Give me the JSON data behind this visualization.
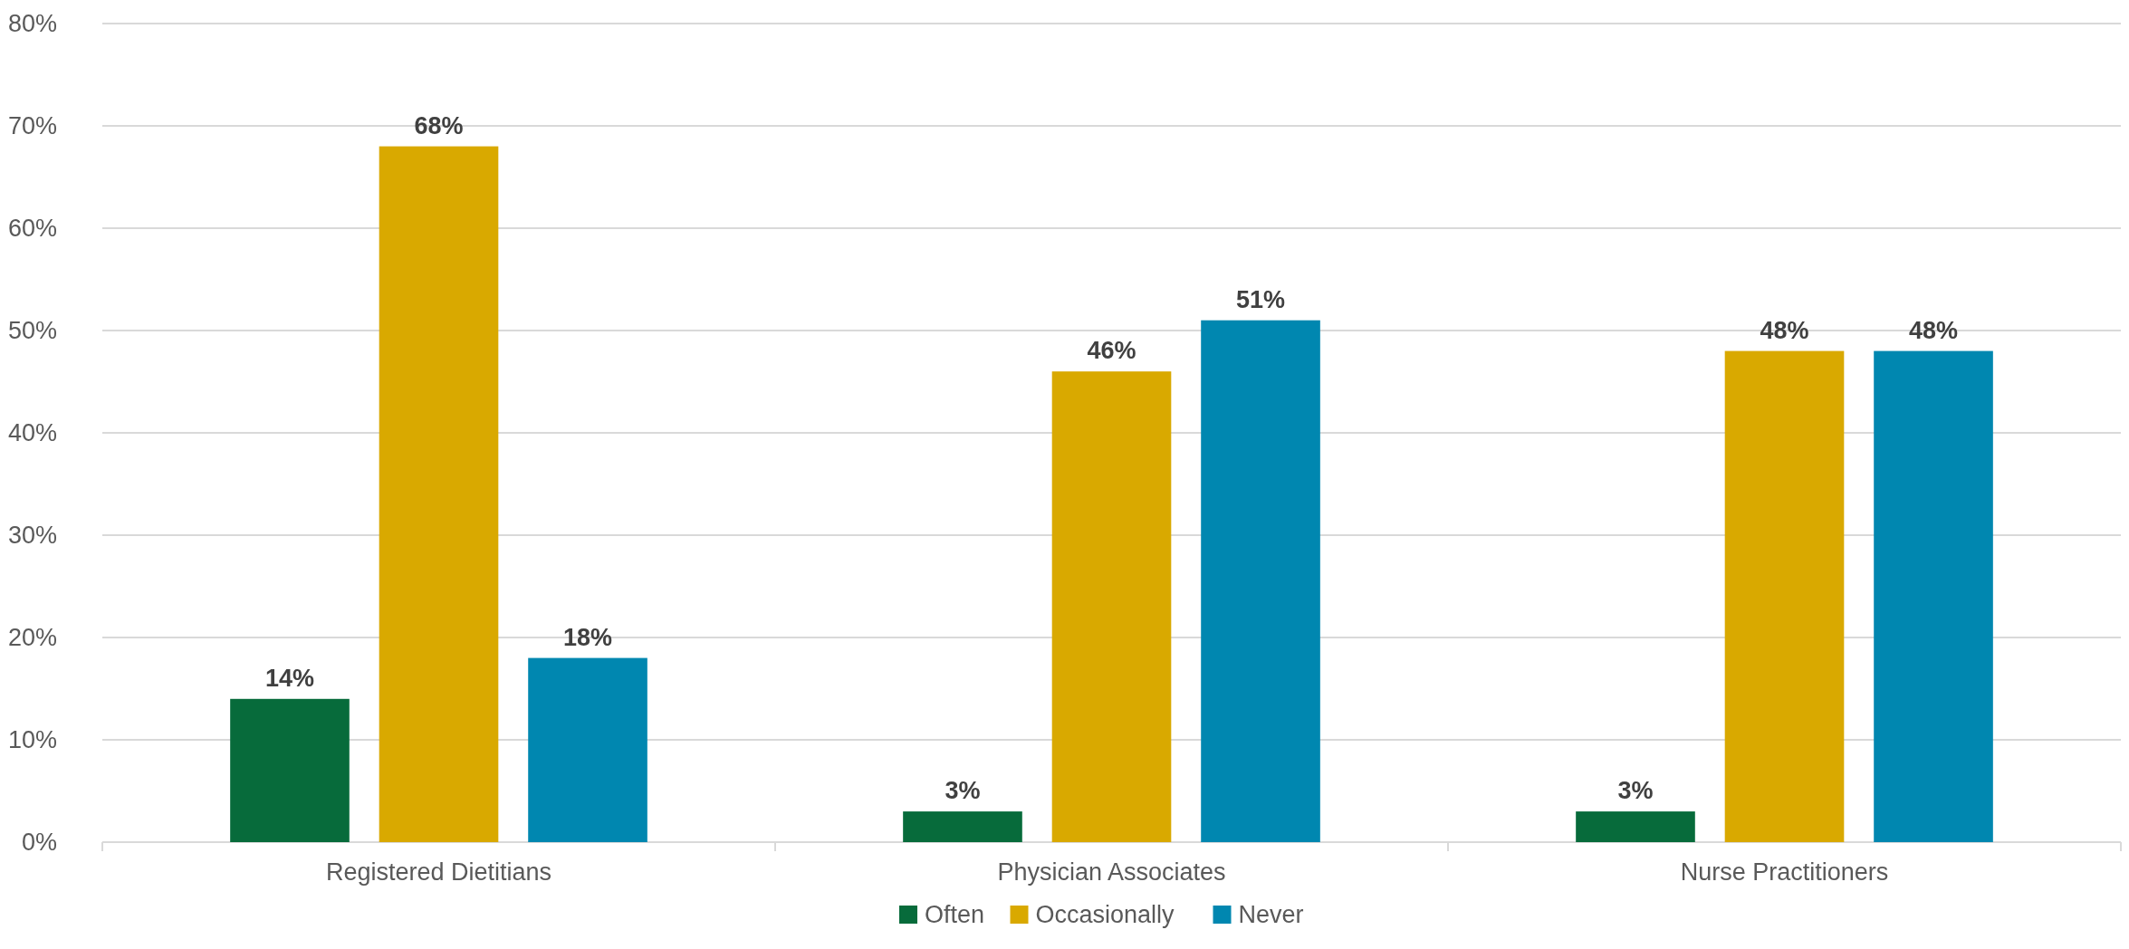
{
  "chart_data": {
    "type": "bar",
    "categories": [
      "Registered Dietitians",
      "Physician Associates",
      "Nurse Practitioners"
    ],
    "series": [
      {
        "name": "Often",
        "color": "#076b3b",
        "values": [
          14,
          3,
          3
        ],
        "value_labels": [
          "14%",
          "3%",
          "3%"
        ]
      },
      {
        "name": "Occasionally",
        "color": "#d9a900",
        "values": [
          68,
          46,
          48
        ],
        "value_labels": [
          "68%",
          "46%",
          "48%"
        ]
      },
      {
        "name": "Never",
        "color": "#0087b0",
        "values": [
          18,
          51,
          48
        ],
        "value_labels": [
          "18%",
          "51%",
          "48%"
        ]
      }
    ],
    "ylim": [
      0,
      80
    ],
    "yticks": [
      {
        "value": 0,
        "label": "0%"
      },
      {
        "value": 10,
        "label": "10%"
      },
      {
        "value": 20,
        "label": "20%"
      },
      {
        "value": 30,
        "label": "30%"
      },
      {
        "value": 40,
        "label": "40%"
      },
      {
        "value": 50,
        "label": "50%"
      },
      {
        "value": 60,
        "label": "60%"
      },
      {
        "value": 70,
        "label": "70%"
      },
      {
        "value": 80,
        "label": "80%"
      }
    ],
    "grid": "y",
    "legend": "bottom"
  }
}
